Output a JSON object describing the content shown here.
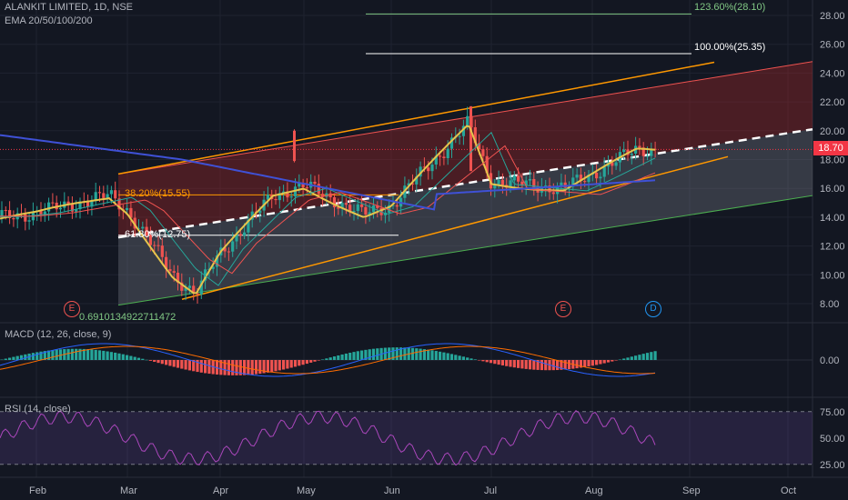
{
  "header": {
    "symbol_line": "ALANKIT LIMITED, 1D, NSE",
    "ema_line": "EMA 20/50/100/200"
  },
  "price_tag": "18.70",
  "price_axis": [
    "28.00",
    "26.00",
    "24.00",
    "22.00",
    "20.00",
    "18.00",
    "16.00",
    "14.00",
    "12.00",
    "10.00",
    "8.00"
  ],
  "macd": {
    "label": "MACD (12, 26, close, 9)",
    "axis": [
      "0.00"
    ]
  },
  "rsi": {
    "label": "RSI (14, close)",
    "axis": [
      "75.00",
      "50.00",
      "25.00"
    ]
  },
  "time_axis": [
    "Feb",
    "Mar",
    "Apr",
    "May",
    "Jun",
    "Jul",
    "Aug",
    "Sep",
    "Oct"
  ],
  "fib_labels": {
    "f1236": "123.60%(28.10)",
    "f100": "100.00%(25.35)",
    "f382": "38.20%(15.55)",
    "f618": "61.80%(12.75)",
    "f0": "0.6910134922711472"
  },
  "earnings_markers": [
    "E",
    "E",
    "D"
  ],
  "colors": {
    "up": "#26a69a",
    "down": "#ef5350",
    "bg": "#131722"
  },
  "chart_data": {
    "type": "candlestick",
    "title": "ALANKIT LIMITED, 1D, NSE",
    "ylim": [
      7,
      29
    ],
    "approx_close_path": [
      {
        "date": "Jan",
        "close": 14.0
      },
      {
        "date": "Feb",
        "close": 14.3
      },
      {
        "date": "Feb-end",
        "close": 15.5
      },
      {
        "date": "Mar",
        "close": 14.5
      },
      {
        "date": "Mar-mid",
        "close": 10.0
      },
      {
        "date": "Mar-end",
        "close": 8.7
      },
      {
        "date": "Apr",
        "close": 11.5
      },
      {
        "date": "Apr-end",
        "close": 15.5
      },
      {
        "date": "May",
        "close": 16.2
      },
      {
        "date": "May-end",
        "close": 14.2
      },
      {
        "date": "Jun",
        "close": 14.8
      },
      {
        "date": "Jun-end",
        "close": 20.5
      },
      {
        "date": "Jul",
        "close": 16.5
      },
      {
        "date": "Jul-end",
        "close": 16.0
      },
      {
        "date": "Aug",
        "close": 17.0
      },
      {
        "date": "Aug-mid",
        "close": 18.7
      },
      {
        "date": "Aug-end",
        "close": 18.7
      }
    ],
    "fib_levels": [
      {
        "label": "123.60%",
        "value": 28.1
      },
      {
        "label": "100.00%",
        "value": 25.35
      },
      {
        "label": "38.20%",
        "value": 15.55
      },
      {
        "label": "61.80%",
        "value": 12.75
      }
    ],
    "last_price": 18.7,
    "rsi_levels": [
      75,
      50,
      25
    ]
  }
}
